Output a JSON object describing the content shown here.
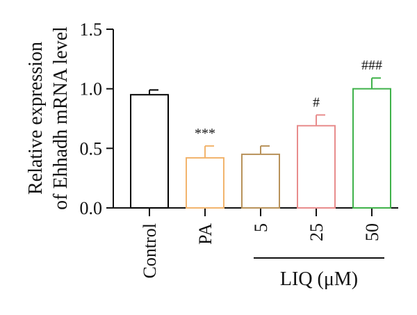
{
  "chart_data": {
    "type": "bar",
    "title": "",
    "ylabel_lines": [
      "Relative expression",
      "of Ehhadh mRNA level"
    ],
    "xlabel": "",
    "ylim": [
      0,
      1.5
    ],
    "yticks": [
      "0.0",
      "0.5",
      "1.0",
      "1.5"
    ],
    "ytick_values": [
      0,
      0.5,
      1.0,
      1.5
    ],
    "categories": [
      "Control",
      "PA",
      "5",
      "25",
      "50"
    ],
    "values": [
      0.95,
      0.42,
      0.45,
      0.69,
      1.0
    ],
    "errors": [
      0.04,
      0.1,
      0.07,
      0.09,
      0.09
    ],
    "significance": [
      "",
      "***",
      "",
      "#",
      "###"
    ],
    "colors": [
      "#000000",
      "#f2b46d",
      "#b8925a",
      "#e88c8c",
      "#3fb24a"
    ],
    "group_label": "LIQ (μM)",
    "group_span": [
      "5",
      "50"
    ],
    "grid": false,
    "legend": "none"
  }
}
